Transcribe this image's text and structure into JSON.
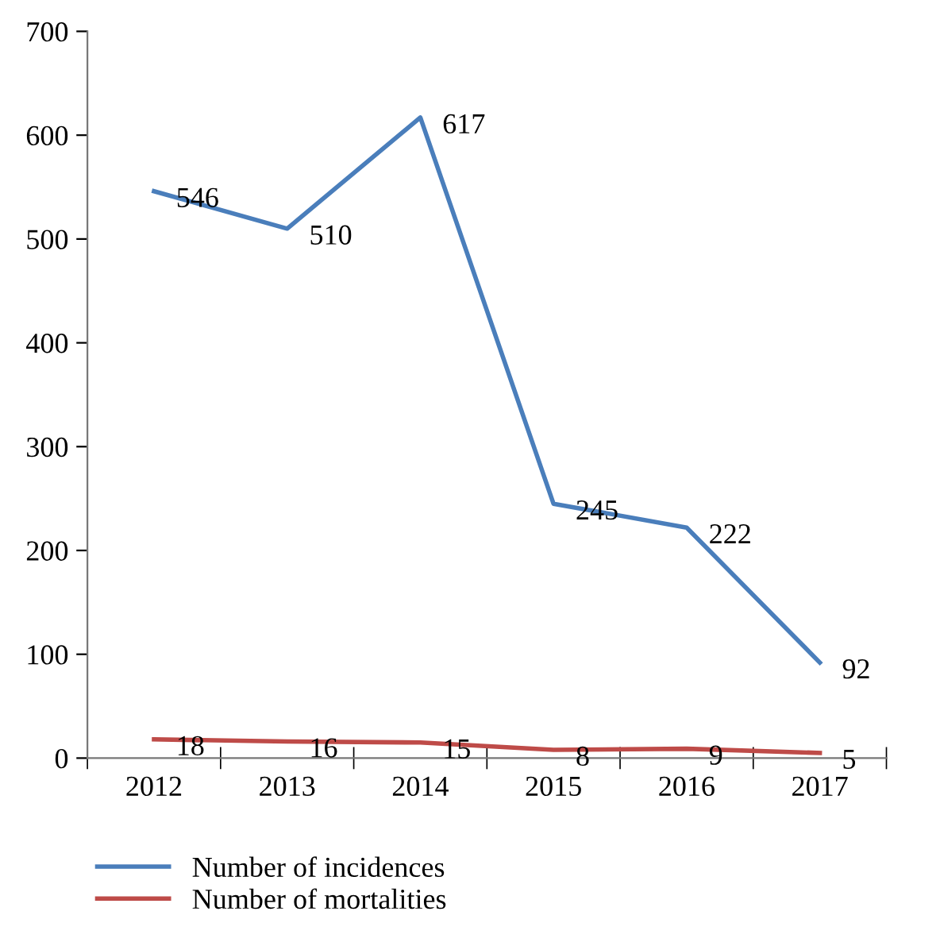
{
  "chart_data": {
    "type": "line",
    "categories": [
      "2012",
      "2013",
      "2014",
      "2015",
      "2016",
      "2017"
    ],
    "series": [
      {
        "name": "Number of incidences",
        "color": "#4a7ebb",
        "values": [
          546,
          510,
          617,
          245,
          222,
          92
        ]
      },
      {
        "name": "Number of mortalities",
        "color": "#be4b48",
        "values": [
          18,
          16,
          15,
          8,
          9,
          5
        ]
      }
    ],
    "ylim": [
      0,
      700
    ],
    "yticks": [
      0,
      100,
      200,
      300,
      400,
      500,
      600,
      700
    ],
    "data_labels": true,
    "grid": false,
    "legend": "bottom",
    "marker": "none",
    "line_style": "solid"
  }
}
